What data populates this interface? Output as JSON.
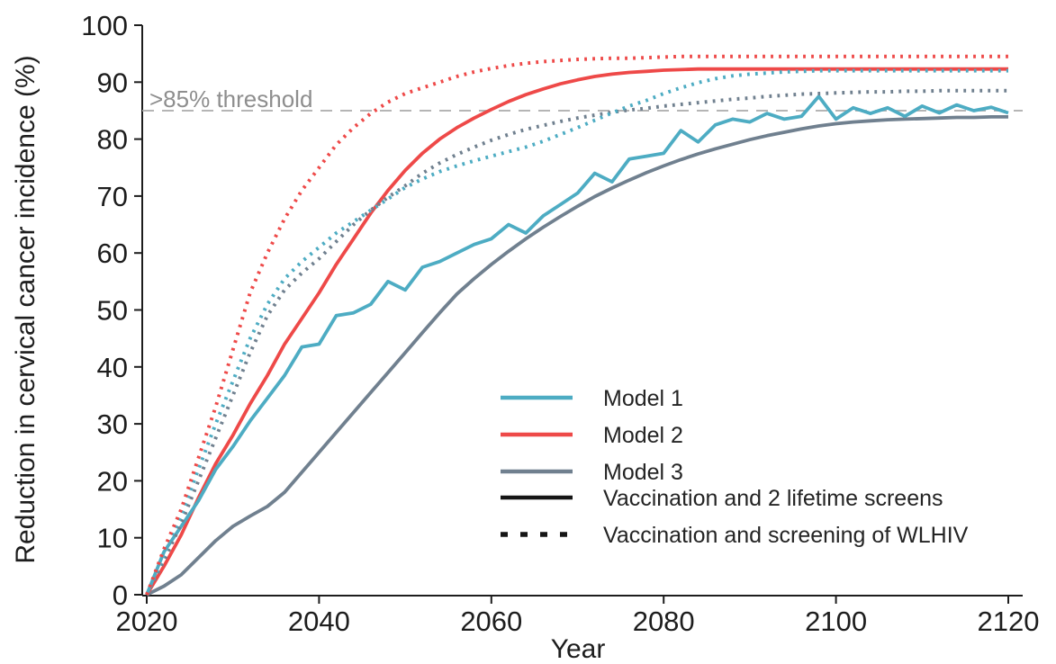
{
  "page": {
    "background": "#ffffff"
  },
  "chart_data": {
    "type": "line",
    "title": "",
    "xlabel": "Year",
    "ylabel": "Reduction in cervical cancer incidence (%)",
    "xlim": [
      2020,
      2120
    ],
    "ylim": [
      0,
      100
    ],
    "x_ticks": [
      2020,
      2040,
      2060,
      2080,
      2100,
      2120
    ],
    "y_ticks": [
      0,
      10,
      20,
      30,
      40,
      50,
      60,
      70,
      80,
      90,
      100
    ],
    "grid": false,
    "legend_position": "inside-bottom-right",
    "axis_color": "#1d1d1d",
    "threshold": {
      "value": 85,
      "label": ">85% threshold",
      "line_color": "#ababab",
      "label_color": "#8e8e8e",
      "style": "dashed"
    },
    "x": [
      2020,
      2022,
      2024,
      2026,
      2028,
      2030,
      2032,
      2034,
      2036,
      2038,
      2040,
      2042,
      2044,
      2046,
      2048,
      2050,
      2052,
      2054,
      2056,
      2058,
      2060,
      2062,
      2064,
      2066,
      2068,
      2070,
      2072,
      2074,
      2076,
      2078,
      2080,
      2082,
      2084,
      2086,
      2088,
      2090,
      2092,
      2094,
      2096,
      2098,
      2100,
      2102,
      2104,
      2106,
      2108,
      2110,
      2112,
      2114,
      2116,
      2118,
      2120
    ],
    "series": [
      {
        "key": "model3-solid",
        "model": "Model 3",
        "scenario": "Vaccination and 2 lifetime screens",
        "color": "#70808F",
        "line": "solid",
        "values": [
          0,
          1.5,
          3.5,
          6.5,
          9.5,
          12,
          13.8,
          15.5,
          18,
          21.5,
          25,
          28.5,
          32,
          35.5,
          39,
          42.5,
          46,
          49.5,
          52.8,
          55.5,
          58,
          60.3,
          62.5,
          64.5,
          66.4,
          68.2,
          69.9,
          71.4,
          72.8,
          74.1,
          75.3,
          76.4,
          77.4,
          78.3,
          79.1,
          79.9,
          80.6,
          81.2,
          81.8,
          82.3,
          82.7,
          83,
          83.2,
          83.4,
          83.5,
          83.6,
          83.7,
          83.8,
          83.8,
          83.9,
          83.9
        ]
      },
      {
        "key": "model2-solid",
        "model": "Model 2",
        "scenario": "Vaccination and 2 lifetime screens",
        "color": "#EE4948",
        "line": "solid",
        "values": [
          0,
          5,
          10.5,
          17,
          23,
          28,
          33.5,
          38.5,
          44,
          48.5,
          53,
          58,
          62.5,
          67,
          71,
          74.5,
          77.5,
          80,
          82,
          83.7,
          85.2,
          86.6,
          87.8,
          88.8,
          89.7,
          90.4,
          91,
          91.4,
          91.7,
          91.9,
          92.1,
          92.2,
          92.3,
          92.3,
          92.3,
          92.3,
          92.3,
          92.3,
          92.3,
          92.3,
          92.3,
          92.3,
          92.3,
          92.3,
          92.3,
          92.3,
          92.3,
          92.3,
          92.3,
          92.3,
          92.3
        ]
      },
      {
        "key": "model1-solid",
        "model": "Model 1",
        "scenario": "Vaccination and 2 lifetime screens",
        "color": "#4DACC3",
        "line": "solid",
        "values": [
          0,
          7.5,
          12,
          16.5,
          22,
          26,
          30.5,
          34.5,
          38.5,
          43.5,
          44,
          49,
          49.5,
          51,
          55,
          53.5,
          57.5,
          58.5,
          60,
          61.5,
          62.5,
          65,
          63.5,
          66.5,
          68.5,
          70.5,
          74,
          72.5,
          76.5,
          77,
          77.5,
          81.5,
          79.5,
          82.5,
          83.5,
          83,
          84.5,
          83.5,
          84,
          87.5,
          83.5,
          85.5,
          84.5,
          85.5,
          84,
          85.8,
          84.6,
          86,
          85,
          85.6,
          84.6
        ]
      },
      {
        "key": "model3-dotted",
        "model": "Model 3",
        "scenario": "Vaccination and screening of WLHIV",
        "color": "#70808F",
        "line": "dotted",
        "values": [
          0,
          6,
          12.5,
          20,
          27.5,
          35,
          42.5,
          49,
          53.5,
          56.5,
          59,
          62,
          65,
          67.5,
          69.8,
          71.8,
          74,
          75.8,
          77.3,
          78.6,
          79.8,
          80.8,
          81.7,
          82.4,
          83.1,
          83.7,
          84.2,
          84.7,
          85.1,
          85.4,
          85.8,
          86.1,
          86.4,
          86.7,
          87,
          87.2,
          87.5,
          87.7,
          87.9,
          88,
          88.1,
          88.2,
          88.3,
          88.3,
          88.4,
          88.4,
          88.5,
          88.5,
          88.5,
          88.5,
          88.5
        ]
      },
      {
        "key": "model1-dotted",
        "model": "Model 1",
        "scenario": "Vaccination and screening of WLHIV",
        "color": "#4DACC3",
        "line": "dotted",
        "values": [
          0,
          7,
          14,
          22,
          30,
          37.5,
          45,
          51,
          55.5,
          58.5,
          61,
          63.5,
          65.5,
          67.5,
          69.5,
          71.5,
          73,
          74.3,
          75.3,
          76.2,
          77,
          77.8,
          78.6,
          79.6,
          80.8,
          82,
          83.3,
          84.6,
          85.8,
          86.8,
          88,
          89,
          89.9,
          90.6,
          91.1,
          91.4,
          91.6,
          91.8,
          91.9,
          92,
          92,
          92,
          92,
          92,
          92,
          92,
          92,
          92,
          92,
          92,
          92
        ]
      },
      {
        "key": "model2-dotted",
        "model": "Model 2",
        "scenario": "Vaccination and screening of WLHIV",
        "color": "#EE4948",
        "line": "dotted",
        "values": [
          0,
          8,
          15,
          24,
          33,
          43,
          53,
          60,
          66,
          71,
          75,
          79,
          82,
          84.5,
          86.5,
          88,
          89,
          90,
          91,
          91.8,
          92.4,
          92.9,
          93.3,
          93.6,
          93.8,
          94,
          94.1,
          94.2,
          94.2,
          94.3,
          94.4,
          94.5,
          94.5,
          94.5,
          94.5,
          94.5,
          94.5,
          94.5,
          94.5,
          94.5,
          94.5,
          94.5,
          94.5,
          94.5,
          94.5,
          94.5,
          94.5,
          94.5,
          94.5,
          94.5,
          94.5
        ]
      }
    ],
    "legend": {
      "entries": [
        {
          "label": "Model 1",
          "color": "#4DACC3",
          "style": "solid"
        },
        {
          "label": "Model 2",
          "color": "#EE4948",
          "style": "solid"
        },
        {
          "label": "Model 3",
          "color": "#70808F",
          "style": "solid"
        },
        {
          "label": "Vaccination and 2 lifetime screens",
          "color": "#151515",
          "style": "solid"
        },
        {
          "label": "Vaccination and screening of WLHIV",
          "color": "#151515",
          "style": "dotted"
        }
      ]
    }
  }
}
